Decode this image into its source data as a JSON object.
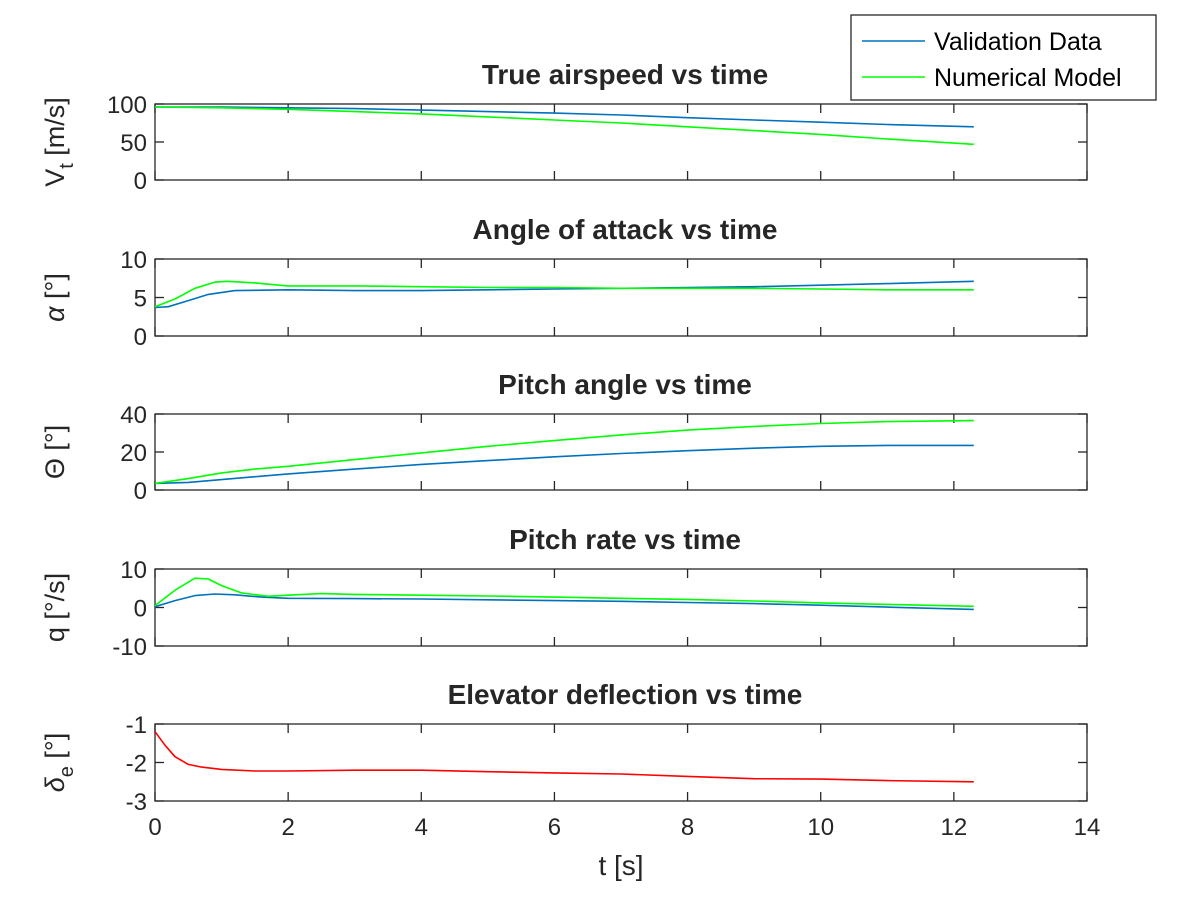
{
  "chart_data": [
    {
      "type": "line",
      "title": "True airspeed vs time",
      "ylabel": "V",
      "ylabel_sub": "t",
      "ylabel_unit": " [m/s]",
      "xlim": [
        0,
        14
      ],
      "ylim": [
        0,
        100
      ],
      "yticks": [
        0,
        50,
        100
      ],
      "series": [
        {
          "name": "Validation Data",
          "color": "#0072BD",
          "x": [
            0,
            1,
            2,
            3,
            4,
            5,
            6,
            7,
            8,
            9,
            10,
            11,
            12.3
          ],
          "y": [
            96,
            96,
            95,
            94,
            92,
            90,
            88,
            85.5,
            82,
            79,
            76,
            73,
            70
          ]
        },
        {
          "name": "Numerical Model",
          "color": "#00FF00",
          "x": [
            0,
            1,
            2,
            3,
            4,
            5,
            6,
            7,
            8,
            9,
            10,
            11,
            12.3
          ],
          "y": [
            96,
            95,
            93,
            90,
            87,
            83,
            79,
            75,
            70,
            65,
            60,
            54,
            47
          ]
        }
      ]
    },
    {
      "type": "line",
      "title": "Angle of attack vs time",
      "ylabel": "α",
      "ylabel_sub": "",
      "ylabel_unit": " [°]",
      "xlim": [
        0,
        14
      ],
      "ylim": [
        0,
        10
      ],
      "yticks": [
        0,
        5,
        10
      ],
      "series": [
        {
          "name": "Validation Data",
          "color": "#0072BD",
          "x": [
            0,
            0.2,
            0.5,
            0.8,
            1.2,
            2,
            3,
            4,
            5,
            6,
            7,
            8,
            9,
            10,
            11,
            12.3
          ],
          "y": [
            3.7,
            3.8,
            4.6,
            5.4,
            5.9,
            6.0,
            5.9,
            5.9,
            6.0,
            6.1,
            6.2,
            6.3,
            6.4,
            6.6,
            6.8,
            7.1
          ]
        },
        {
          "name": "Numerical Model",
          "color": "#00FF00",
          "x": [
            0,
            0.3,
            0.6,
            0.9,
            1.1,
            1.5,
            2,
            3,
            4,
            5,
            6,
            7,
            8,
            9,
            10,
            11,
            12.3
          ],
          "y": [
            3.8,
            4.8,
            6.2,
            7.0,
            7.1,
            6.9,
            6.5,
            6.5,
            6.4,
            6.3,
            6.3,
            6.2,
            6.2,
            6.2,
            6.1,
            6.0,
            6.0
          ]
        }
      ]
    },
    {
      "type": "line",
      "title": "Pitch angle vs time",
      "ylabel": "Θ",
      "ylabel_sub": "",
      "ylabel_unit": " [°]",
      "xlim": [
        0,
        14
      ],
      "ylim": [
        0,
        40
      ],
      "yticks": [
        0,
        20,
        40
      ],
      "series": [
        {
          "name": "Validation Data",
          "color": "#0072BD",
          "x": [
            0,
            0.5,
            1,
            2,
            3,
            4,
            5,
            6,
            7,
            8,
            9,
            10,
            11,
            12.3
          ],
          "y": [
            3.5,
            4,
            5.5,
            8.5,
            11,
            13.5,
            15.5,
            17.5,
            19.2,
            20.7,
            22,
            23,
            23.5,
            23.5
          ]
        },
        {
          "name": "Numerical Model",
          "color": "#00FF00",
          "x": [
            0,
            0.5,
            1,
            1.5,
            2,
            3,
            4,
            5,
            6,
            7,
            8,
            9,
            10,
            11,
            12.3
          ],
          "y": [
            3.5,
            6,
            9,
            11,
            12.5,
            16,
            19.5,
            23,
            26,
            29,
            31.5,
            33.5,
            35,
            36,
            36.5
          ]
        }
      ]
    },
    {
      "type": "line",
      "title": "Pitch rate vs time",
      "ylabel": "q",
      "ylabel_sub": "",
      "ylabel_unit": " [°/s]",
      "xlim": [
        0,
        14
      ],
      "ylim": [
        -10,
        10
      ],
      "yticks": [
        -10,
        0,
        10
      ],
      "series": [
        {
          "name": "Validation Data",
          "color": "#0072BD",
          "x": [
            0,
            0.3,
            0.6,
            0.9,
            1.2,
            1.6,
            2,
            3,
            4,
            5,
            6,
            7,
            8,
            9,
            10,
            11,
            12.3
          ],
          "y": [
            0.2,
            1.8,
            3.1,
            3.5,
            3.3,
            2.7,
            2.4,
            2.3,
            2.2,
            2.0,
            1.8,
            1.6,
            1.3,
            1.0,
            0.6,
            0.1,
            -0.5
          ]
        },
        {
          "name": "Numerical Model",
          "color": "#00FF00",
          "x": [
            0,
            0.3,
            0.6,
            0.8,
            1.0,
            1.3,
            1.7,
            2.0,
            2.5,
            3,
            4,
            5,
            6,
            7,
            8,
            9,
            10,
            11,
            12.3
          ],
          "y": [
            0.5,
            4.5,
            7.6,
            7.4,
            5.7,
            3.8,
            2.9,
            3.2,
            3.6,
            3.4,
            3.2,
            3.0,
            2.7,
            2.4,
            2.1,
            1.7,
            1.2,
            0.8,
            0.3
          ]
        }
      ]
    },
    {
      "type": "line",
      "title": "Elevator deflection vs time",
      "ylabel": "δ",
      "ylabel_sub": "e",
      "ylabel_unit": " [°]",
      "xlabel": "t [s]",
      "xlim": [
        0,
        14
      ],
      "xticks": [
        0,
        2,
        4,
        6,
        8,
        10,
        12,
        14
      ],
      "ylim": [
        -3,
        -1
      ],
      "yticks": [
        -3,
        -2,
        -1
      ],
      "series": [
        {
          "name": "",
          "color": "#FF0000",
          "x": [
            0,
            0.15,
            0.3,
            0.5,
            0.7,
            1.0,
            1.5,
            2,
            3,
            4,
            5,
            6,
            7,
            8,
            9,
            10,
            11,
            12.3
          ],
          "y": [
            -1.2,
            -1.55,
            -1.85,
            -2.05,
            -2.12,
            -2.18,
            -2.22,
            -2.22,
            -2.2,
            -2.2,
            -2.24,
            -2.27,
            -2.3,
            -2.36,
            -2.42,
            -2.43,
            -2.47,
            -2.5
          ]
        }
      ]
    }
  ],
  "legend": {
    "entries": [
      {
        "label": "Validation Data",
        "color": "#0072BD"
      },
      {
        "label": "Numerical Model",
        "color": "#00FF00"
      }
    ],
    "placement": "top-right"
  }
}
